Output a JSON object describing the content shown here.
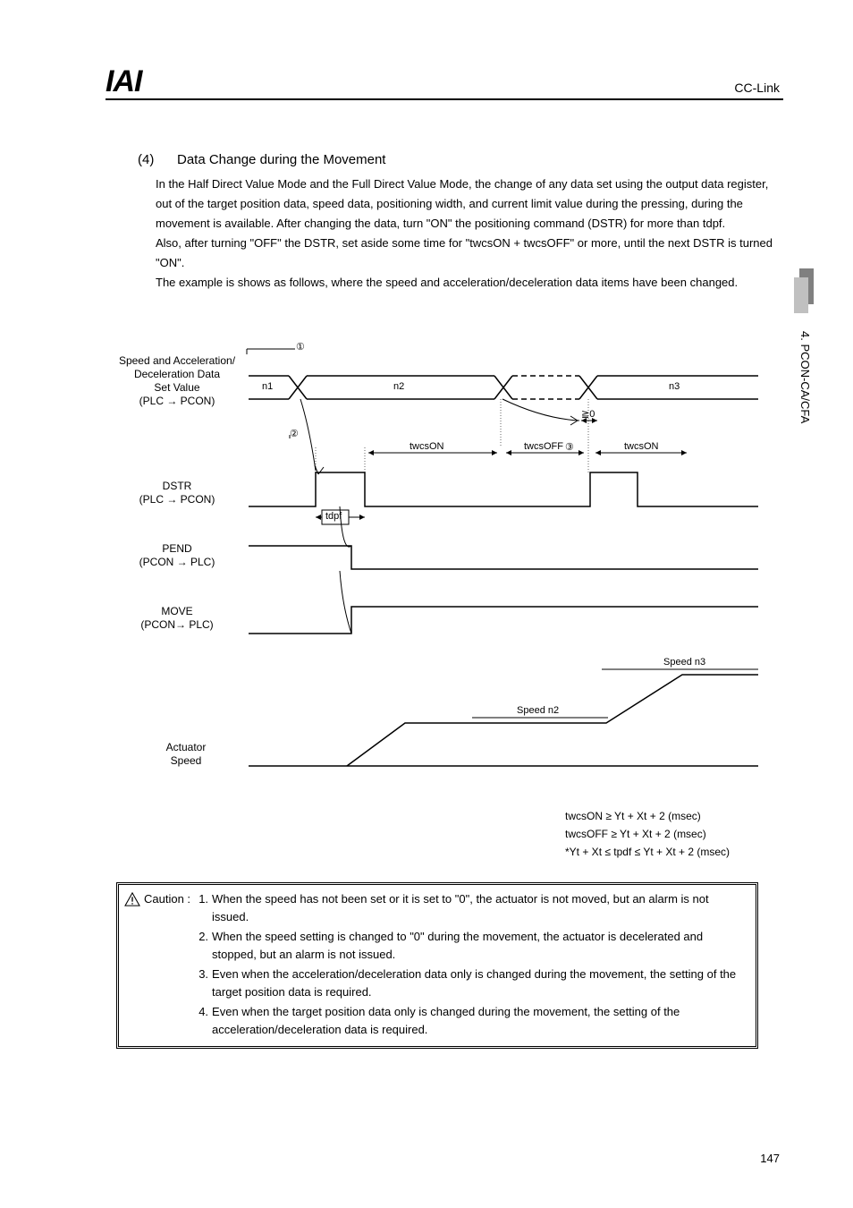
{
  "header": {
    "logo": "IAI",
    "right": "CC-Link"
  },
  "side_tab": "4. PCON-CA/CFA",
  "section": {
    "num": "(4)",
    "title": "Data Change during the Movement",
    "para1": "In the Half Direct Value Mode and the Full Direct Value Mode, the change of any data set using the output data register, out of the target position data, speed data, positioning width, and current limit value during the pressing, during the movement is available. After changing the data, turn \"ON\" the positioning command (DSTR) for more than tdpf.",
    "para2": "Also, after turning \"OFF\" the DSTR, set aside some time for \"twcsON + twcsOFF\" or more, until the next DSTR is turned \"ON\".",
    "para3": "The example is shows as follows, where the speed and acceleration/deceleration data items have been changed."
  },
  "diagram": {
    "signals": {
      "speed_accel": {
        "label_l1": "Speed and Acceleration/",
        "label_l2": "Deceleration Data",
        "label_l3": "Set Value",
        "label_l4": "(PLC → PCON)"
      },
      "dstr": {
        "label_l1": "DSTR",
        "label_l2": "(PLC → PCON)"
      },
      "pend": {
        "label_l1": "PEND",
        "label_l2": "(PCON → PLC)"
      },
      "move": {
        "label_l1": "MOVE",
        "label_l2": "(PCON→ PLC)"
      },
      "actuator": {
        "label_l1": "Actuator",
        "label_l2": "Speed"
      }
    },
    "markers": {
      "m1": "①",
      "m2": "②",
      "m3": "③"
    },
    "values": {
      "n1": "n1",
      "n2": "n2",
      "n3": "n3"
    },
    "times": {
      "twcsON": "twcsON",
      "twcsOFF": "twcsOFF",
      "twcsON2": "twcsON",
      "tdpf": "tdpf",
      "ge0": "≧0"
    },
    "speeds": {
      "n2": "Speed n2",
      "n3": "Speed n3"
    }
  },
  "formulas": {
    "f1": "twcsON ≥ Yt + Xt + 2 (msec)",
    "f2": "twcsOFF ≥ Yt + Xt + 2 (msec)",
    "f3": "*Yt + Xt ≤ tpdf ≤ Yt + Xt + 2 (msec)"
  },
  "caution": {
    "label": "Caution :",
    "items": [
      {
        "n": "1.",
        "t": "When the speed has not been set or it is set to \"0\", the actuator is not moved, but an alarm is not issued."
      },
      {
        "n": "2.",
        "t": "When the speed setting is changed to \"0\" during the movement, the actuator is decelerated and stopped, but an alarm is not issued."
      },
      {
        "n": "3.",
        "t": "Even when the acceleration/deceleration data only is changed during the movement, the setting of the target position data is required."
      },
      {
        "n": "4.",
        "t": "Even when the target position data only is changed during the movement, the setting of the acceleration/deceleration data is required."
      }
    ]
  },
  "page_number": "147"
}
